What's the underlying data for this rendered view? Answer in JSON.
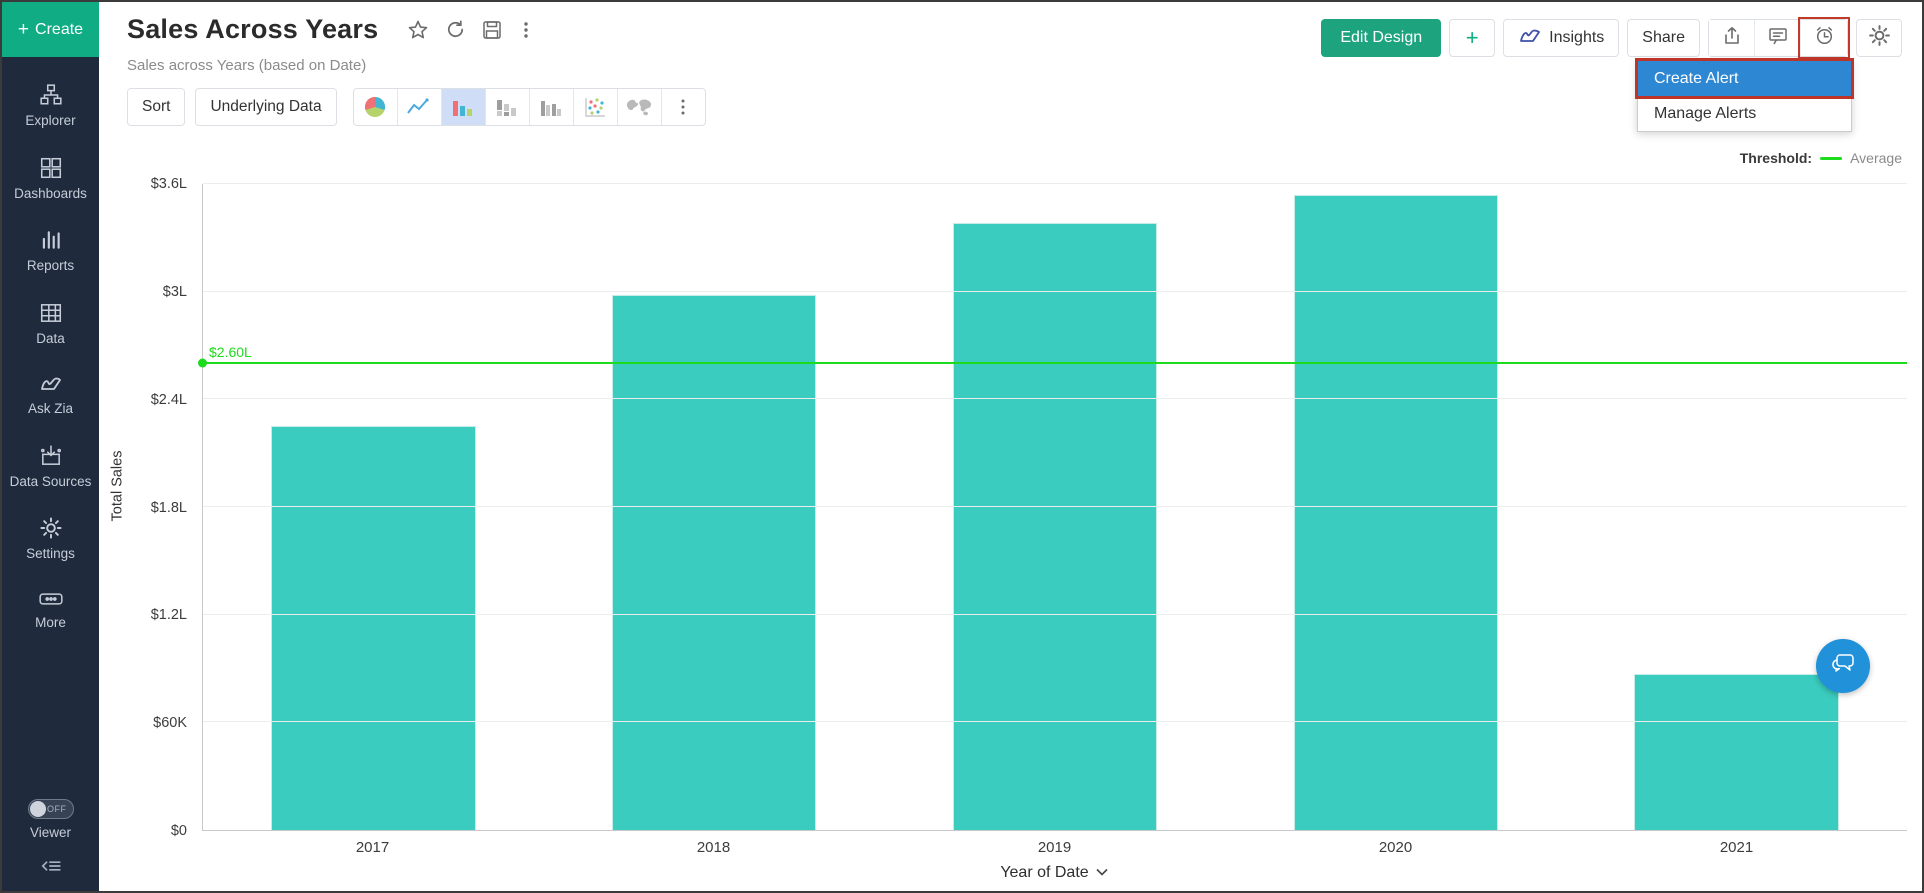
{
  "sidebar": {
    "create_label": "Create",
    "items": [
      {
        "label": "Explorer",
        "icon": "tree-icon"
      },
      {
        "label": "Dashboards",
        "icon": "grid-icon"
      },
      {
        "label": "Reports",
        "icon": "bar-lines-icon"
      },
      {
        "label": "Data",
        "icon": "table-icon"
      },
      {
        "label": "Ask Zia",
        "icon": "zia-icon"
      },
      {
        "label": "Data Sources",
        "icon": "import-icon"
      },
      {
        "label": "Settings",
        "icon": "gear-icon"
      },
      {
        "label": "More",
        "icon": "ellipsis-icon"
      }
    ],
    "viewer": {
      "label": "Viewer",
      "toggle_state": "OFF"
    }
  },
  "header": {
    "title": "Sales Across Years",
    "subtitle": "Sales across Years (based on Date)",
    "actions": {
      "edit_design": "Edit Design",
      "add": "+",
      "insights": "Insights",
      "share": "Share"
    },
    "alert_menu": {
      "items": [
        "Create Alert",
        "Manage Alerts"
      ],
      "selected": "Create Alert"
    }
  },
  "toolbar": {
    "sort_label": "Sort",
    "underlying_data_label": "Underlying Data",
    "chart_types": [
      "pie",
      "line",
      "bar",
      "stacked-bar",
      "grouped-bar",
      "scatter",
      "map"
    ],
    "selected_chart_type": "bar"
  },
  "chart_data": {
    "type": "bar",
    "categories": [
      "2017",
      "2018",
      "2019",
      "2020",
      "2021"
    ],
    "values": [
      225000,
      298000,
      338000,
      354000,
      87000
    ],
    "xlabel": "Year of Date",
    "ylabel": "Total Sales",
    "ylim": [
      0,
      360000
    ],
    "yticks": [
      {
        "value": 0,
        "label": "$0"
      },
      {
        "value": 60000,
        "label": "$60K"
      },
      {
        "value": 120000,
        "label": "$1.2L"
      },
      {
        "value": 180000,
        "label": "$1.8L"
      },
      {
        "value": 240000,
        "label": "$2.4L"
      },
      {
        "value": 300000,
        "label": "$3L"
      },
      {
        "value": 360000,
        "label": "$3.6L"
      }
    ],
    "grid": true,
    "bar_color": "#3accbe",
    "legend_position": "top-right",
    "threshold": {
      "value": 260000,
      "label": "$2.60L",
      "legend_prefix": "Threshold:",
      "legend_name": "Average",
      "color": "#1ddb1d"
    }
  },
  "colors": {
    "accent_green": "#10ad84",
    "edit_design_green": "#1da47f",
    "menu_highlight_blue": "#2e87d2",
    "annotation_red": "#c0392b",
    "fab_blue": "#2191d9",
    "sidebar_bg": "#1f2a3c",
    "selected_tool_bg": "#cfddf6"
  }
}
